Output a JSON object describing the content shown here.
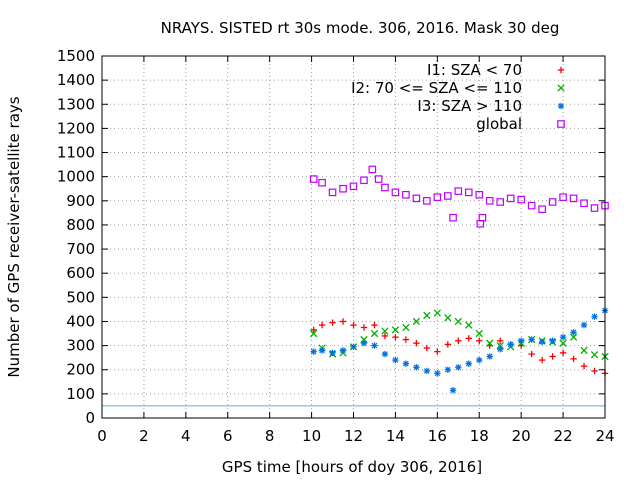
{
  "chart_data": {
    "type": "scatter",
    "title": "NRAYS. SISTED rt 30s mode. 306, 2016. Mask 30 deg",
    "xlabel": "GPS time [hours of doy 306, 2016]",
    "ylabel": "Number of GPS receiver-satellite rays",
    "xlim": [
      0,
      24
    ],
    "ylim": [
      0,
      1500
    ],
    "x_ticks": [
      "0",
      "2",
      "4",
      "6",
      "8",
      "10",
      "12",
      "14",
      "16",
      "18",
      "20",
      "22",
      "24"
    ],
    "y_ticks": [
      "0",
      "100",
      "200",
      "300",
      "400",
      "500",
      "600",
      "700",
      "800",
      "900",
      "1000",
      "1100",
      "1200",
      "1300",
      "1400",
      "1500"
    ],
    "x_tick_values": [
      0,
      2,
      4,
      6,
      8,
      10,
      12,
      14,
      16,
      18,
      20,
      22,
      24
    ],
    "y_tick_values": [
      0,
      100,
      200,
      300,
      400,
      500,
      600,
      700,
      800,
      900,
      1000,
      1100,
      1200,
      1300,
      1400,
      1500
    ],
    "grid": true,
    "legend_position": "top-right",
    "reference_line": {
      "y": 50,
      "color": "#5ab4c8"
    },
    "series": [
      {
        "name": "I1: SZA < 70",
        "marker": "plus",
        "color": "#ff0000",
        "x": [
          10.1,
          10.5,
          11.0,
          11.5,
          12.0,
          12.5,
          13.0,
          13.5,
          14.0,
          14.5,
          15.0,
          15.5,
          16.0,
          16.5,
          17.0,
          17.5,
          18.0,
          18.5,
          19.0,
          19.5,
          20.0,
          20.5,
          21.0,
          21.5,
          22.0,
          22.5,
          23.0,
          23.5,
          24.0
        ],
        "y": [
          365,
          385,
          395,
          400,
          385,
          375,
          385,
          340,
          335,
          325,
          310,
          290,
          275,
          305,
          320,
          330,
          320,
          300,
          320,
          305,
          300,
          265,
          240,
          255,
          270,
          245,
          215,
          195,
          185
        ]
      },
      {
        "name": "I2: 70 <= SZA <= 110",
        "marker": "cross",
        "color": "#00b000",
        "x": [
          10.1,
          10.5,
          11.0,
          11.5,
          12.0,
          12.5,
          13.0,
          13.5,
          14.0,
          14.5,
          15.0,
          15.5,
          16.0,
          16.5,
          17.0,
          17.5,
          18.0,
          18.5,
          19.0,
          19.5,
          20.0,
          20.5,
          21.0,
          21.5,
          22.0,
          22.5,
          23.0,
          23.5,
          24.0
        ],
        "y": [
          350,
          290,
          265,
          270,
          295,
          325,
          350,
          360,
          365,
          375,
          400,
          425,
          435,
          415,
          400,
          385,
          350,
          310,
          300,
          295,
          310,
          325,
          320,
          315,
          310,
          335,
          280,
          262,
          255
        ]
      },
      {
        "name": "I3: SZA > 110",
        "marker": "star",
        "color": "#0070e0",
        "x": [
          10.1,
          10.5,
          11.0,
          11.5,
          12.0,
          12.5,
          13.0,
          13.5,
          14.0,
          14.5,
          15.0,
          15.5,
          16.0,
          16.5,
          16.75,
          17.0,
          17.5,
          18.0,
          18.5,
          19.0,
          19.5,
          20.0,
          20.5,
          21.0,
          21.5,
          22.0,
          22.5,
          23.0,
          23.5,
          24.0
        ],
        "y": [
          275,
          280,
          270,
          280,
          295,
          310,
          300,
          265,
          240,
          225,
          210,
          195,
          185,
          200,
          115,
          210,
          225,
          240,
          255,
          285,
          305,
          320,
          325,
          315,
          320,
          335,
          355,
          385,
          420,
          445
        ]
      },
      {
        "name": "global",
        "marker": "open-square",
        "color": "#c000ff",
        "x": [
          10.1,
          10.5,
          11.0,
          11.5,
          12.0,
          12.5,
          12.9,
          13.2,
          13.5,
          14.0,
          14.5,
          15.0,
          15.5,
          16.0,
          16.5,
          16.75,
          17.0,
          17.5,
          18.0,
          18.05,
          18.15,
          18.5,
          19.0,
          19.5,
          20.0,
          20.5,
          21.0,
          21.5,
          22.0,
          22.5,
          23.0,
          23.5,
          24.0
        ],
        "y": [
          990,
          975,
          935,
          950,
          960,
          985,
          1030,
          990,
          955,
          935,
          925,
          910,
          900,
          915,
          920,
          830,
          940,
          935,
          925,
          805,
          830,
          900,
          895,
          910,
          905,
          880,
          865,
          895,
          915,
          910,
          890,
          870,
          880
        ]
      }
    ]
  }
}
